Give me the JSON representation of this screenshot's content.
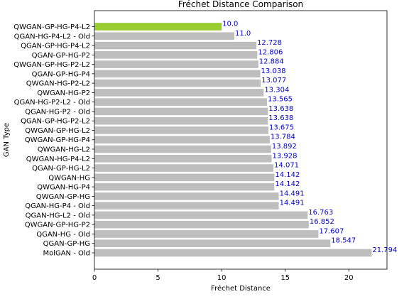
{
  "chart_data": {
    "type": "bar",
    "orientation": "horizontal",
    "title": "Fréchet Distance Comparison",
    "xlabel": "Fréchet Distance",
    "ylabel": "GAN Type",
    "xlim": [
      0,
      23
    ],
    "xticks": [
      0,
      5,
      10,
      15,
      20
    ],
    "grid": false,
    "legend": "none",
    "bar_color": "#bebebe",
    "highlight_color": "#9acd32",
    "value_label_color": "#0000cc",
    "categories": [
      "QWGAN-GP-HG-P4-L2",
      "QGAN-HG-P4-L2 - Old",
      "QGAN-GP-HG-P4-L2",
      "QGAN-GP-HG-P2",
      "QWGAN-GP-HG-P2-L2",
      "QGAN-GP-HG-P4",
      "QWGAN-HG-P2-L2",
      "QWGAN-HG-P2",
      "QGAN-HG-P2-L2 - Old",
      "QGAN-HG-P2 - Old",
      "QGAN-GP-HG-P2-L2",
      "QWGAN-GP-HG-L2",
      "QWGAN-GP-HG-P4",
      "QWGAN-HG-L2",
      "QWGAN-HG-P4-L2",
      "QGAN-GP-HG-L2",
      "QWGAN-HG",
      "QWGAN-HG-P4",
      "QWGAN-GP-HG",
      "QGAN-HG-P4 - Old",
      "QGAN-HG-L2 - Old",
      "QWGAN-GP-HG-P2",
      "QGAN-HG - Old",
      "QGAN-GP-HG",
      "MolGAN - Old"
    ],
    "values": [
      10.0,
      11.0,
      12.728,
      12.806,
      12.884,
      13.038,
      13.077,
      13.304,
      13.565,
      13.638,
      13.638,
      13.675,
      13.784,
      13.892,
      13.928,
      14.071,
      14.142,
      14.142,
      14.491,
      14.491,
      16.763,
      16.852,
      17.607,
      18.547,
      21.794
    ],
    "value_labels": [
      "10.0",
      "11.0",
      "12.728",
      "12.806",
      "12.884",
      "13.038",
      "13.077",
      "13.304",
      "13.565",
      "13.638",
      "13.638",
      "13.675",
      "13.784",
      "13.892",
      "13.928",
      "14.071",
      "14.142",
      "14.142",
      "14.491",
      "14.491",
      "16.763",
      "16.852",
      "17.607",
      "18.547",
      "21.794"
    ],
    "highlight_index": 0
  }
}
